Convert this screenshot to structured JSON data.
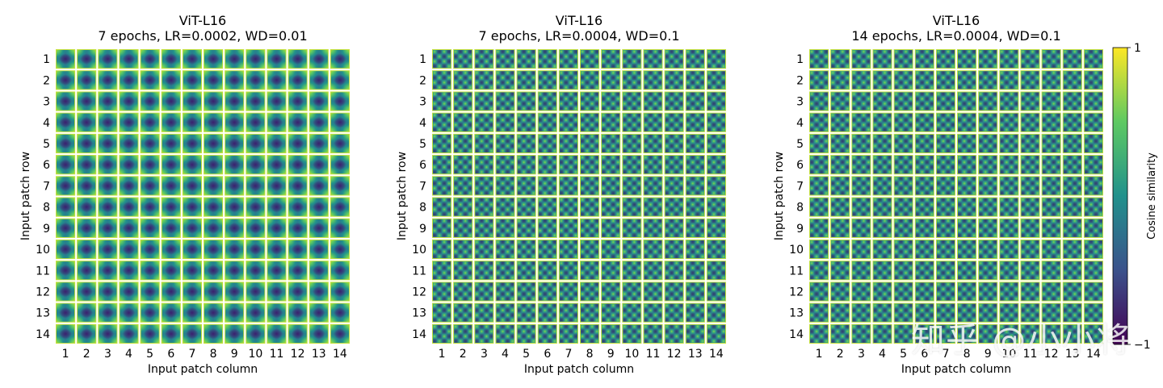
{
  "chart_data": [
    {
      "type": "heatmap",
      "title": "ViT-L16",
      "subtitle": "7 epochs, LR=0.0002, WD=0.01",
      "xlabel": "Input patch column",
      "ylabel": "Input patch row",
      "rows": [
        "1",
        "2",
        "3",
        "4",
        "5",
        "6",
        "7",
        "8",
        "9",
        "10",
        "11",
        "12",
        "13",
        "14"
      ],
      "columns": [
        "1",
        "2",
        "3",
        "4",
        "5",
        "6",
        "7",
        "8",
        "9",
        "10",
        "11",
        "12",
        "13",
        "14"
      ],
      "pattern": "smooth_low_frequency",
      "value_range": [
        -1,
        1
      ]
    },
    {
      "type": "heatmap",
      "title": "ViT-L16",
      "subtitle": "7 epochs, LR=0.0004, WD=0.1",
      "xlabel": "Input patch column",
      "ylabel": "Input patch row",
      "rows": [
        "1",
        "2",
        "3",
        "4",
        "5",
        "6",
        "7",
        "8",
        "9",
        "10",
        "11",
        "12",
        "13",
        "14"
      ],
      "columns": [
        "1",
        "2",
        "3",
        "4",
        "5",
        "6",
        "7",
        "8",
        "9",
        "10",
        "11",
        "12",
        "13",
        "14"
      ],
      "pattern": "high_frequency",
      "value_range": [
        -1,
        1
      ]
    },
    {
      "type": "heatmap",
      "title": "ViT-L16",
      "subtitle": "14 epochs, LR=0.0004, WD=0.1",
      "xlabel": "Input patch column",
      "ylabel": "Input patch row",
      "rows": [
        "1",
        "2",
        "3",
        "4",
        "5",
        "6",
        "7",
        "8",
        "9",
        "10",
        "11",
        "12",
        "13",
        "14"
      ],
      "columns": [
        "1",
        "2",
        "3",
        "4",
        "5",
        "6",
        "7",
        "8",
        "9",
        "10",
        "11",
        "12",
        "13",
        "14"
      ],
      "pattern": "high_frequency",
      "value_range": [
        -1,
        1
      ]
    }
  ],
  "colorbar": {
    "label": "Cosine similarity",
    "max_label": "1",
    "min_label": "−1",
    "colormap": "viridis",
    "stops": [
      "#440154",
      "#3b528b",
      "#21918c",
      "#5ec962",
      "#fde725"
    ]
  },
  "watermark": "知乎 @小小将"
}
